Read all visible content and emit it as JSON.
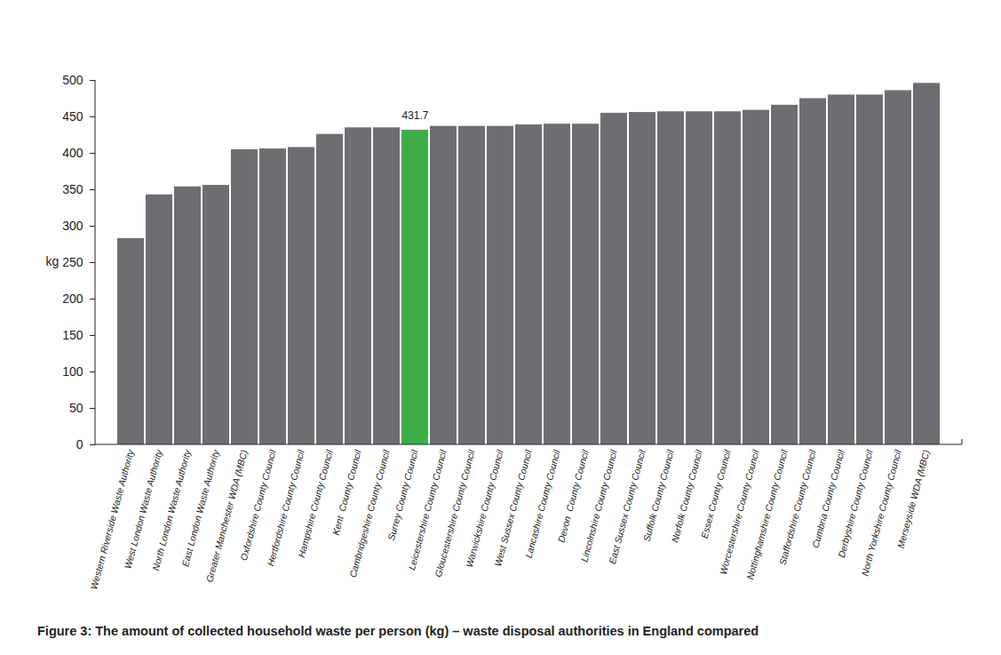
{
  "chart_data": {
    "type": "bar",
    "caption": "Figure 3: The amount of collected household waste per person (kg) – waste disposal authorities in England compared",
    "y_label": "kg",
    "categories": [
      "Western Riverside Waste Authority",
      "West London Waste Authority",
      "North London Waste Authority",
      "East London Waste Authority",
      "Greater Manchester WDA (MBC)",
      "Oxfordshire County Council",
      "Hertfordshire County Council",
      "Hampshire County Council",
      "Kent  County Council",
      "Cambridgeshire County Council",
      "Surrey County Council",
      "Leicestershire County Council",
      "Gloucestershire County Council",
      "Warwickshire County Council",
      "West Sussex County Council",
      "Lancashire County Council",
      "Devon  County Council",
      "Lincolnshire County Council",
      "East Sussex County Council",
      "Suffolk County Council",
      "Norfolk County Council",
      "Essex County Council",
      "Worcestershire County Council",
      "Nottinghamshire County Council",
      "Staffordshire County Council",
      "Cumbria County Council",
      "Derbyshire County Council",
      "North Yorkshire County Council",
      "Merseyside WDA (MBC)"
    ],
    "values": [
      283,
      343,
      354,
      356,
      405,
      406,
      408,
      426,
      435,
      435,
      431.7,
      437,
      437,
      437,
      439,
      440,
      440,
      455,
      456,
      457,
      457,
      457,
      459,
      466,
      475,
      480,
      480,
      486,
      496
    ],
    "colors": [
      "#6d6e71",
      "#6d6e71",
      "#6d6e71",
      "#6d6e71",
      "#6d6e71",
      "#6d6e71",
      "#6d6e71",
      "#6d6e71",
      "#6d6e71",
      "#6d6e71",
      "#3fae49",
      "#6d6e71",
      "#6d6e71",
      "#6d6e71",
      "#6d6e71",
      "#6d6e71",
      "#6d6e71",
      "#6d6e71",
      "#6d6e71",
      "#6d6e71",
      "#6d6e71",
      "#6d6e71",
      "#6d6e71",
      "#6d6e71",
      "#6d6e71",
      "#6d6e71",
      "#6d6e71",
      "#6d6e71",
      "#6d6e71"
    ],
    "annotations": [
      {
        "x": "Surrey County Council",
        "y": 431.7,
        "text": "431.7"
      }
    ],
    "ylim": [
      0,
      500
    ],
    "yticks": [
      0,
      50,
      100,
      150,
      200,
      250,
      300,
      350,
      400,
      450,
      500
    ],
    "grid": false
  }
}
